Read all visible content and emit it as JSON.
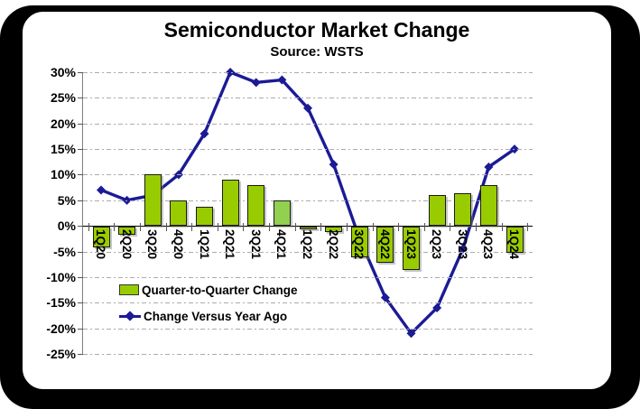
{
  "title": "Semiconductor Market Change",
  "subtitle": "Source: WSTS",
  "legend": [
    {
      "label": "Quarter-to-Quarter Change",
      "type": "bar"
    },
    {
      "label": "Change Versus Year Ago",
      "type": "line"
    }
  ],
  "chart_data": {
    "type": "bar",
    "title": "Semiconductor Market Change",
    "subtitle": "Source: WSTS",
    "categories": [
      "1Q20",
      "2Q20",
      "3Q20",
      "4Q20",
      "1Q21",
      "2Q21",
      "3Q21",
      "4Q21",
      "1Q22",
      "2Q22",
      "3Q22",
      "4Q22",
      "1Q23",
      "2Q23",
      "3Q23",
      "4Q23",
      "1Q24"
    ],
    "series": [
      {
        "name": "Quarter-to-Quarter Change",
        "type": "bar",
        "values": [
          -4,
          -1.5,
          10,
          5,
          3.7,
          9,
          8,
          5,
          -0.5,
          -1,
          -6,
          -7,
          -8.5,
          6,
          6.3,
          8,
          -5
        ]
      },
      {
        "name": "Change Versus Year Ago",
        "type": "line",
        "values": [
          7,
          5,
          6,
          10,
          18,
          30,
          28,
          28.5,
          23,
          12,
          -2.5,
          -14,
          -21,
          -16,
          -4.5,
          11.5,
          15
        ]
      }
    ],
    "ylim": [
      -25,
      30
    ],
    "ytick_step": 5,
    "ytick_labels": [
      "30%",
      "25%",
      "20%",
      "15%",
      "10%",
      "5%",
      "0%",
      "-5%",
      "-10%",
      "-15%",
      "-20%",
      "-25%"
    ],
    "grid": true,
    "legend_position": "inside-left",
    "colors": {
      "bar": "#99cc00",
      "bar_alt": "#92d050",
      "bar_alt_index": 7,
      "line": "#1b1b96",
      "grid": "#ababab",
      "axis": "#000000"
    }
  }
}
